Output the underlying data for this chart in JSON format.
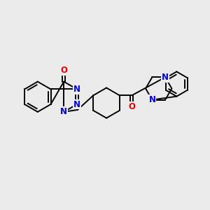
{
  "bg_color": "#ebebeb",
  "N_color": "#0000ee",
  "O_color": "#ee0000",
  "bond_color": "#000000",
  "lw": 1.4,
  "fs": 8.5,
  "fig_w": 3.0,
  "fig_h": 3.0,
  "dpi": 100,
  "xlim": [
    0,
    300
  ],
  "ylim": [
    0,
    300
  ]
}
